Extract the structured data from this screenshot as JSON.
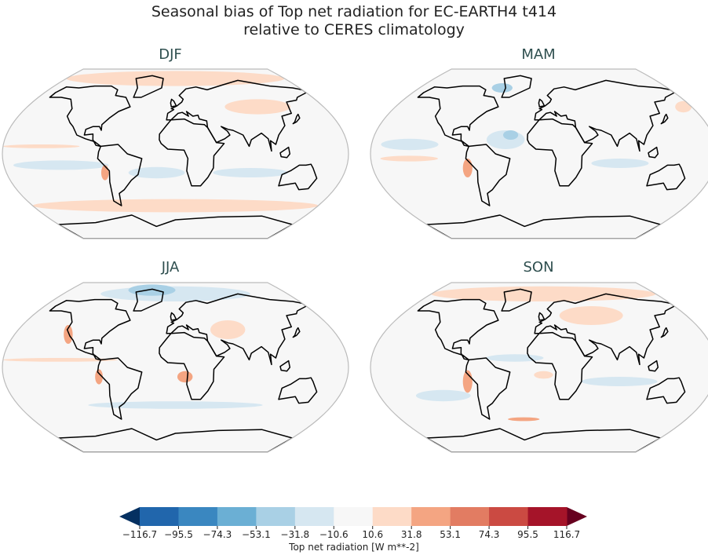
{
  "title": {
    "line1": "Seasonal bias of Top net radiation for EC-EARTH4 t414",
    "line2": "relative to CERES climatology"
  },
  "panels": [
    {
      "label": "DJF"
    },
    {
      "label": "MAM"
    },
    {
      "label": "JJA"
    },
    {
      "label": "SON"
    }
  ],
  "colorbar": {
    "label": "Top net radiation [W m**-2]",
    "ticks": [
      "−116.7",
      "−95.5",
      "−74.3",
      "−53.1",
      "−31.8",
      "−10.6",
      "10.6",
      "31.8",
      "53.1",
      "74.3",
      "95.5",
      "116.7"
    ],
    "extend": "both",
    "colors": [
      "#053061",
      "#2166ac",
      "#3a87c0",
      "#6bafd4",
      "#a9d0e5",
      "#d6e7f1",
      "#f7f7f7",
      "#fddbc7",
      "#f4a582",
      "#e27c62",
      "#cb4a42",
      "#a51429",
      "#67001f"
    ]
  }
}
